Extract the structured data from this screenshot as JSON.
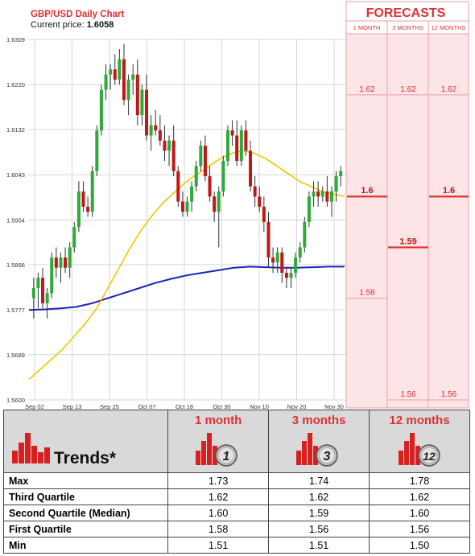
{
  "chart": {
    "title": "GBP/USD Daily Chart",
    "current_label": "Current price:",
    "current_value": "1.6058",
    "y_ticks": [
      "1.6309",
      "1.6220",
      "1.6132",
      "1.6043",
      "1.5954",
      "1.5866",
      "1.5777",
      "1.5689",
      "1.5600"
    ],
    "x_ticks": [
      "Sep 02",
      "Sep 13",
      "Sep 25",
      "Oct 07",
      "Oct 18",
      "Oct 30",
      "Nov 10",
      "Nov 20",
      "Nov 30"
    ]
  },
  "forecasts": {
    "title": "FORECASTS",
    "columns": [
      "1 MONTH",
      "3 MONTHS",
      "12 MONTHS"
    ],
    "upper": [
      "1.62",
      "1.62",
      "1.62"
    ],
    "median": [
      "1.6",
      "1.59",
      "1.6"
    ],
    "lower": [
      "1.58",
      "1.56",
      "1.56"
    ],
    "upper_values": [
      1.62,
      1.62,
      1.62
    ],
    "median_values": [
      1.6,
      1.59,
      1.6
    ],
    "lower_values": [
      1.58,
      1.56,
      1.56
    ]
  },
  "chart_data": {
    "type": "candlestick",
    "title": "GBP/USD Daily Chart",
    "ylim": [
      1.56,
      1.6309
    ],
    "series": [
      {
        "values": [
          [
            1.58,
            1.584,
            1.576,
            1.582
          ],
          [
            1.582,
            1.585,
            1.578,
            1.584
          ],
          [
            1.584,
            1.586,
            1.578,
            1.579
          ],
          [
            1.579,
            1.582,
            1.576,
            1.581
          ],
          [
            1.581,
            1.589,
            1.58,
            1.588
          ],
          [
            1.588,
            1.59,
            1.584,
            1.586
          ],
          [
            1.586,
            1.589,
            1.583,
            1.588
          ],
          [
            1.588,
            1.59,
            1.585,
            1.586
          ],
          [
            1.586,
            1.591,
            1.584,
            1.59
          ],
          [
            1.59,
            1.595,
            1.589,
            1.594
          ],
          [
            1.594,
            1.603,
            1.593,
            1.601
          ],
          [
            1.601,
            1.603,
            1.597,
            1.598
          ],
          [
            1.598,
            1.6,
            1.596,
            1.597
          ],
          [
            1.597,
            1.606,
            1.596,
            1.605
          ],
          [
            1.605,
            1.614,
            1.604,
            1.613
          ],
          [
            1.613,
            1.622,
            1.612,
            1.621
          ],
          [
            1.621,
            1.626,
            1.619,
            1.624
          ],
          [
            1.624,
            1.626,
            1.621,
            1.625
          ],
          [
            1.625,
            1.628,
            1.622,
            1.623
          ],
          [
            1.623,
            1.629,
            1.622,
            1.627
          ],
          [
            1.627,
            1.63,
            1.618,
            1.619
          ],
          [
            1.619,
            1.624,
            1.616,
            1.623
          ],
          [
            1.623,
            1.626,
            1.62,
            1.624
          ],
          [
            1.624,
            1.627,
            1.614,
            1.616
          ],
          [
            1.616,
            1.622,
            1.614,
            1.621
          ],
          [
            1.621,
            1.624,
            1.611,
            1.612
          ],
          [
            1.612,
            1.616,
            1.609,
            1.614
          ],
          [
            1.614,
            1.617,
            1.612,
            1.613
          ],
          [
            1.613,
            1.616,
            1.61,
            1.611
          ],
          [
            1.611,
            1.614,
            1.607,
            1.609
          ],
          [
            1.609,
            1.612,
            1.606,
            1.611
          ],
          [
            1.611,
            1.614,
            1.604,
            1.605
          ],
          [
            1.605,
            1.606,
            1.598,
            1.599
          ],
          [
            1.599,
            1.601,
            1.596,
            1.597
          ],
          [
            1.597,
            1.6,
            1.596,
            1.599
          ],
          [
            1.599,
            1.603,
            1.597,
            1.602
          ],
          [
            1.602,
            1.607,
            1.601,
            1.606
          ],
          [
            1.606,
            1.611,
            1.605,
            1.61
          ],
          [
            1.61,
            1.612,
            1.603,
            1.604
          ],
          [
            1.604,
            1.606,
            1.599,
            1.6
          ],
          [
            1.6,
            1.601,
            1.595,
            1.597
          ],
          [
            1.597,
            1.602,
            1.59,
            1.601
          ],
          [
            1.601,
            1.608,
            1.6,
            1.607
          ],
          [
            1.607,
            1.614,
            1.606,
            1.613
          ],
          [
            1.613,
            1.615,
            1.61,
            1.612
          ],
          [
            1.612,
            1.615,
            1.606,
            1.607
          ],
          [
            1.607,
            1.614,
            1.606,
            1.613
          ],
          [
            1.613,
            1.615,
            1.608,
            1.609
          ],
          [
            1.609,
            1.611,
            1.601,
            1.602
          ],
          [
            1.602,
            1.604,
            1.598,
            1.6
          ],
          [
            1.6,
            1.602,
            1.597,
            1.598
          ],
          [
            1.598,
            1.6,
            1.593,
            1.595
          ],
          [
            1.595,
            1.597,
            1.586,
            1.588
          ],
          [
            1.588,
            1.59,
            1.585,
            1.587
          ],
          [
            1.587,
            1.59,
            1.585,
            1.589
          ],
          [
            1.589,
            1.59,
            1.583,
            1.585
          ],
          [
            1.585,
            1.586,
            1.582,
            1.584
          ],
          [
            1.584,
            1.586,
            1.582,
            1.585
          ],
          [
            1.585,
            1.589,
            1.584,
            1.588
          ],
          [
            1.588,
            1.591,
            1.587,
            1.59
          ],
          [
            1.59,
            1.596,
            1.589,
            1.595
          ],
          [
            1.595,
            1.601,
            1.594,
            1.6
          ],
          [
            1.6,
            1.603,
            1.598,
            1.601
          ],
          [
            1.601,
            1.603,
            1.598,
            1.6
          ],
          [
            1.6,
            1.602,
            1.599,
            1.601
          ],
          [
            1.601,
            1.604,
            1.598,
            1.599
          ],
          [
            1.599,
            1.602,
            1.596,
            1.601
          ],
          [
            1.601,
            1.605,
            1.599,
            1.604
          ],
          [
            1.604,
            1.606,
            1.602,
            1.605
          ]
        ]
      },
      {
        "name": "",
        "values": [
          1.564,
          1.566,
          1.568,
          1.57,
          1.5725,
          1.575,
          1.578,
          1.582,
          1.586,
          1.59,
          1.5935,
          1.5965,
          1.599,
          1.601,
          1.603,
          1.6045,
          1.606,
          1.6075,
          1.6085,
          1.609,
          1.6085,
          1.6075,
          1.606,
          1.6045,
          1.603,
          1.602,
          1.601,
          1.6005,
          1.6
        ]
      },
      {
        "name": "",
        "values": [
          1.5777,
          1.5778,
          1.578,
          1.5783,
          1.579,
          1.58,
          1.581,
          1.582,
          1.583,
          1.5838,
          1.5845,
          1.585,
          1.5855,
          1.586,
          1.5862,
          1.5861,
          1.586,
          1.586,
          1.5861,
          1.5862,
          1.5862
        ]
      }
    ]
  },
  "trends": {
    "title": "Trends*",
    "columns": [
      {
        "label": "1 month",
        "badge": "1"
      },
      {
        "label": "3 months",
        "badge": "3"
      },
      {
        "label": "12 months",
        "badge": "12"
      }
    ],
    "rows": [
      {
        "label": "Max",
        "values": [
          "1.73",
          "1.74",
          "1.78"
        ]
      },
      {
        "label": "Third Quartile",
        "values": [
          "1.62",
          "1.62",
          "1.62"
        ]
      },
      {
        "label": "Second Quartile (Median)",
        "values": [
          "1.60",
          "1.59",
          "1.60"
        ]
      },
      {
        "label": "First Quartile",
        "values": [
          "1.58",
          "1.56",
          "1.56"
        ]
      },
      {
        "label": "Min",
        "values": [
          "1.51",
          "1.51",
          "1.50"
        ]
      }
    ]
  },
  "colors": {
    "bull": "#2eaa3a",
    "bear": "#c01818",
    "ma_short": "#f5c400",
    "ma_long": "#1a22b8",
    "forecast_fill": "#fde4e6",
    "forecast_line": "#e03030"
  }
}
